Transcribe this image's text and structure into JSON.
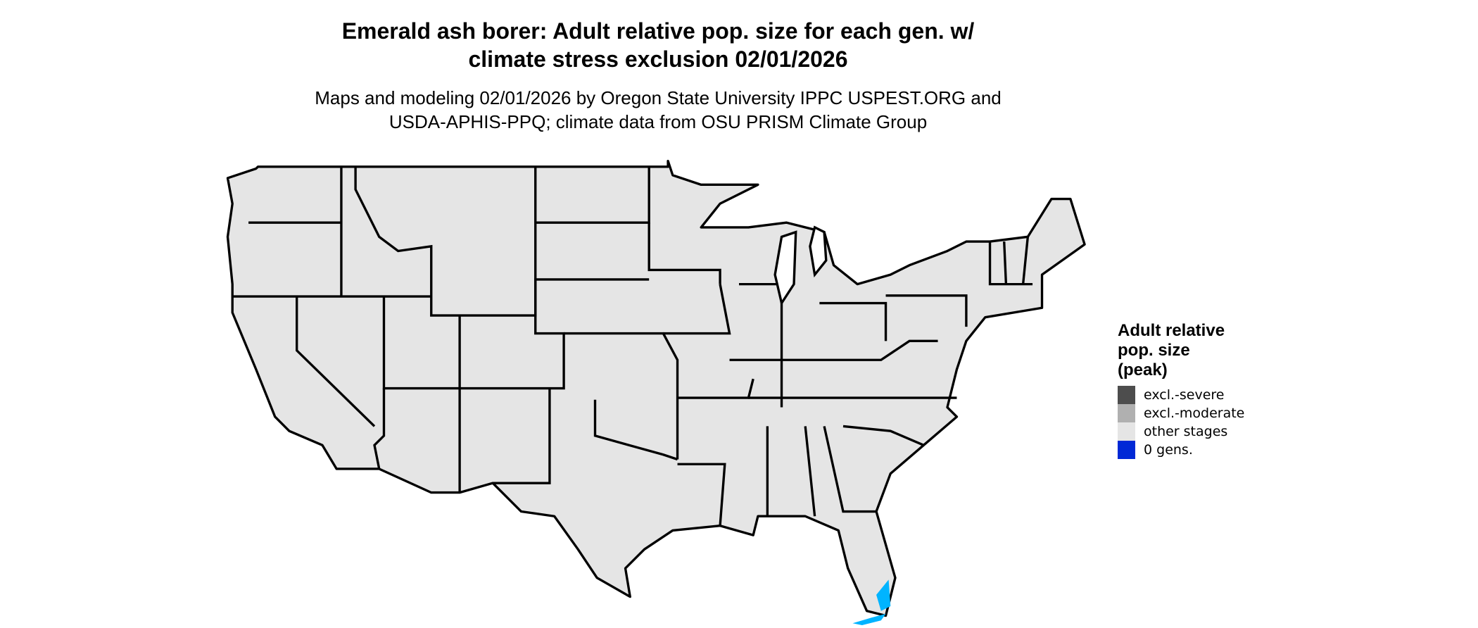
{
  "title": {
    "line1": "Emerald ash borer: Adult relative pop. size for each gen. w/",
    "line2": "climate stress exclusion 02/01/2026"
  },
  "subtitle": {
    "line1": "Maps and modeling 02/01/2026 by Oregon State University IPPC USPEST.ORG and",
    "line2": "USDA-APHIS-PPQ; climate data from OSU PRISM Climate Group"
  },
  "map": {
    "region": "Contiguous United States",
    "fill_color": "#e5e5e5",
    "border_color": "#000000",
    "highlight_color": "#00b4ff",
    "highlight_area": "southern Florida"
  },
  "legend": {
    "title_line1": "Adult relative",
    "title_line2": "pop. size",
    "title_line3": "(peak)",
    "items": [
      {
        "label": "excl.-severe",
        "color": "#4d4d4d"
      },
      {
        "label": "excl.-moderate",
        "color": "#b0b0b0"
      },
      {
        "label": "other stages",
        "color": "#e5e5e5"
      },
      {
        "label": "0 gens.",
        "color": "#0029d6"
      }
    ]
  }
}
